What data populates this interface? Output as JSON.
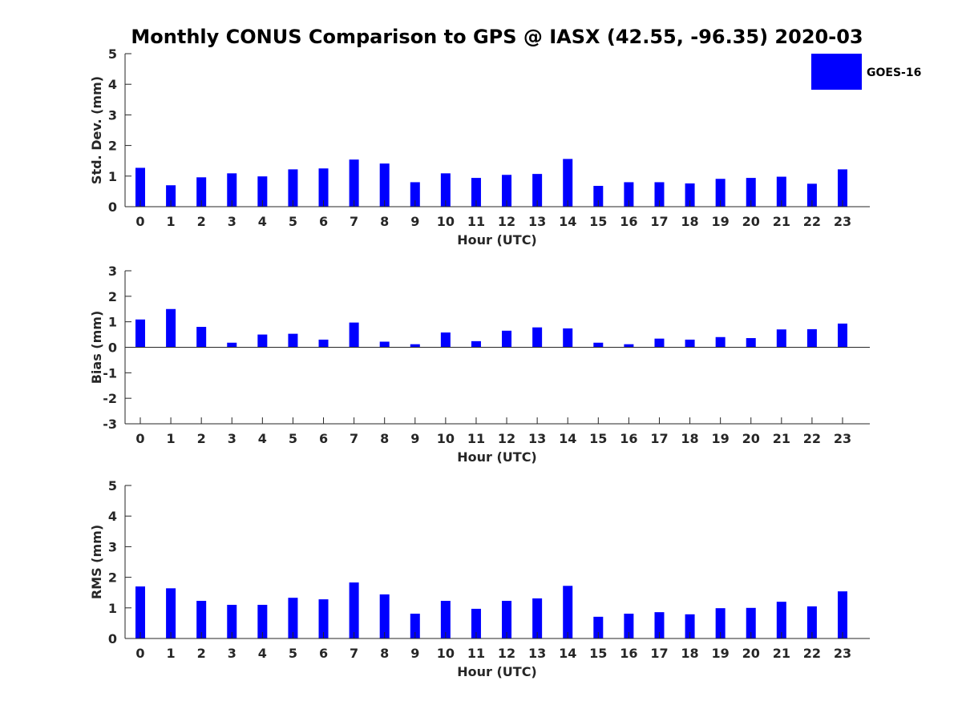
{
  "title": "Monthly CONUS Comparison to GPS @ IASX (42.55, -96.35) 2020-03",
  "legend": {
    "label": "GOES-16",
    "color": "#0000ff"
  },
  "colors": {
    "bar": "#0000ff",
    "axis": "#262626"
  },
  "chart_data": [
    {
      "type": "bar",
      "title": "Monthly CONUS Comparison to GPS @ IASX (42.55, -96.35) 2020-03",
      "xlabel": "Hour (UTC)",
      "ylabel": "Std. Dev. (mm)",
      "ylim": [
        0,
        5
      ],
      "yticks": [
        0,
        1,
        2,
        3,
        4,
        5
      ],
      "categories": [
        "0",
        "1",
        "2",
        "3",
        "4",
        "5",
        "6",
        "7",
        "8",
        "9",
        "10",
        "11",
        "12",
        "13",
        "14",
        "15",
        "16",
        "17",
        "18",
        "19",
        "20",
        "21",
        "22",
        "23"
      ],
      "series": [
        {
          "name": "GOES-16",
          "values": [
            1.27,
            0.7,
            0.96,
            1.09,
            0.99,
            1.22,
            1.25,
            1.54,
            1.41,
            0.8,
            1.09,
            0.94,
            1.04,
            1.07,
            1.56,
            0.68,
            0.8,
            0.8,
            0.76,
            0.91,
            0.94,
            0.98,
            0.75,
            1.22
          ]
        }
      ]
    },
    {
      "type": "bar",
      "xlabel": "Hour (UTC)",
      "ylabel": "Bias (mm)",
      "ylim": [
        -3,
        3
      ],
      "yticks": [
        -3,
        -2,
        -1,
        0,
        1,
        2,
        3
      ],
      "categories": [
        "0",
        "1",
        "2",
        "3",
        "4",
        "5",
        "6",
        "7",
        "8",
        "9",
        "10",
        "11",
        "12",
        "13",
        "14",
        "15",
        "16",
        "17",
        "18",
        "19",
        "20",
        "21",
        "22",
        "23"
      ],
      "series": [
        {
          "name": "GOES-16",
          "values": [
            1.09,
            1.5,
            0.8,
            0.18,
            0.5,
            0.53,
            0.3,
            0.97,
            0.22,
            0.12,
            0.58,
            0.24,
            0.65,
            0.78,
            0.74,
            0.18,
            0.12,
            0.34,
            0.3,
            0.4,
            0.36,
            0.7,
            0.71,
            0.93
          ]
        }
      ]
    },
    {
      "type": "bar",
      "xlabel": "Hour (UTC)",
      "ylabel": "RMS (mm)",
      "ylim": [
        0,
        5
      ],
      "yticks": [
        0,
        1,
        2,
        3,
        4,
        5
      ],
      "categories": [
        "0",
        "1",
        "2",
        "3",
        "4",
        "5",
        "6",
        "7",
        "8",
        "9",
        "10",
        "11",
        "12",
        "13",
        "14",
        "15",
        "16",
        "17",
        "18",
        "19",
        "20",
        "21",
        "22",
        "23"
      ],
      "series": [
        {
          "name": "GOES-16",
          "values": [
            1.7,
            1.64,
            1.23,
            1.1,
            1.1,
            1.33,
            1.28,
            1.83,
            1.44,
            0.81,
            1.23,
            0.97,
            1.23,
            1.31,
            1.72,
            0.71,
            0.81,
            0.86,
            0.79,
            0.99,
            1.0,
            1.2,
            1.05,
            1.54
          ]
        }
      ]
    }
  ]
}
